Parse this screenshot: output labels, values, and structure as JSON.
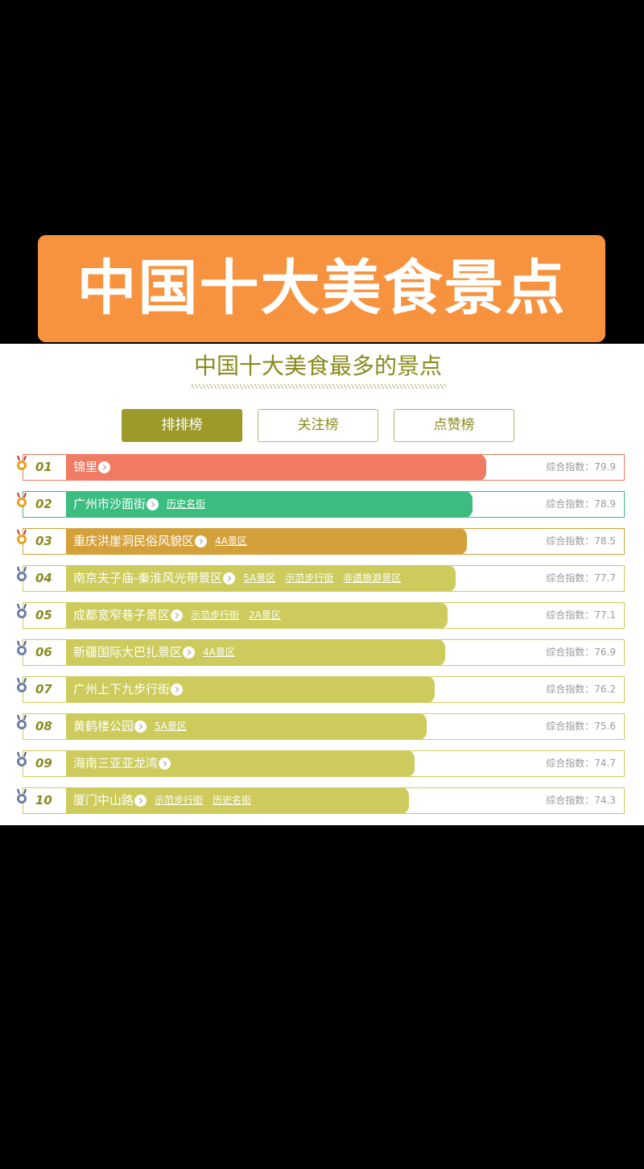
{
  "banner": {
    "title": "中国十大美食景点"
  },
  "header": {
    "title": "中国十大美食最多的景点"
  },
  "tabs": [
    "排排榜",
    "关注榜",
    "点赞榜"
  ],
  "score_label": "综合指数：",
  "rows": [
    {
      "rank": "01",
      "name": "锦里",
      "tags": [],
      "score": 79.9,
      "color": "#f07a62"
    },
    {
      "rank": "02",
      "name": "广州市沙面街",
      "tags": [
        "历史名街"
      ],
      "score": 78.9,
      "color": "#3cbd80"
    },
    {
      "rank": "03",
      "name": "重庆洪崖洞民俗风貌区",
      "tags": [
        "4A景区"
      ],
      "score": 78.5,
      "color": "#d4a03a"
    },
    {
      "rank": "04",
      "name": "南京夫子庙-秦淮风光带景区",
      "tags": [
        "5A景区",
        "示范步行街",
        "非遗旅游景区"
      ],
      "score": 77.7,
      "color": "#cccb5c"
    },
    {
      "rank": "05",
      "name": "成都宽窄巷子景区",
      "tags": [
        "示范步行街",
        "2A景区"
      ],
      "score": 77.1,
      "color": "#cccb5c"
    },
    {
      "rank": "06",
      "name": "新疆国际大巴扎景区",
      "tags": [
        "4A景区"
      ],
      "score": 76.9,
      "color": "#cccb5c"
    },
    {
      "rank": "07",
      "name": "广州上下九步行街",
      "tags": [],
      "score": 76.2,
      "color": "#cccb5c"
    },
    {
      "rank": "08",
      "name": "黄鹤楼公园",
      "tags": [
        "5A景区"
      ],
      "score": 75.6,
      "color": "#cccb5c"
    },
    {
      "rank": "09",
      "name": "海南三亚亚龙湾",
      "tags": [],
      "score": 74.7,
      "color": "#cccb5c"
    },
    {
      "rank": "10",
      "name": "厦门中山路",
      "tags": [
        "示范步行街",
        "历史名街"
      ],
      "score": 74.3,
      "color": "#cccb5c"
    }
  ]
}
